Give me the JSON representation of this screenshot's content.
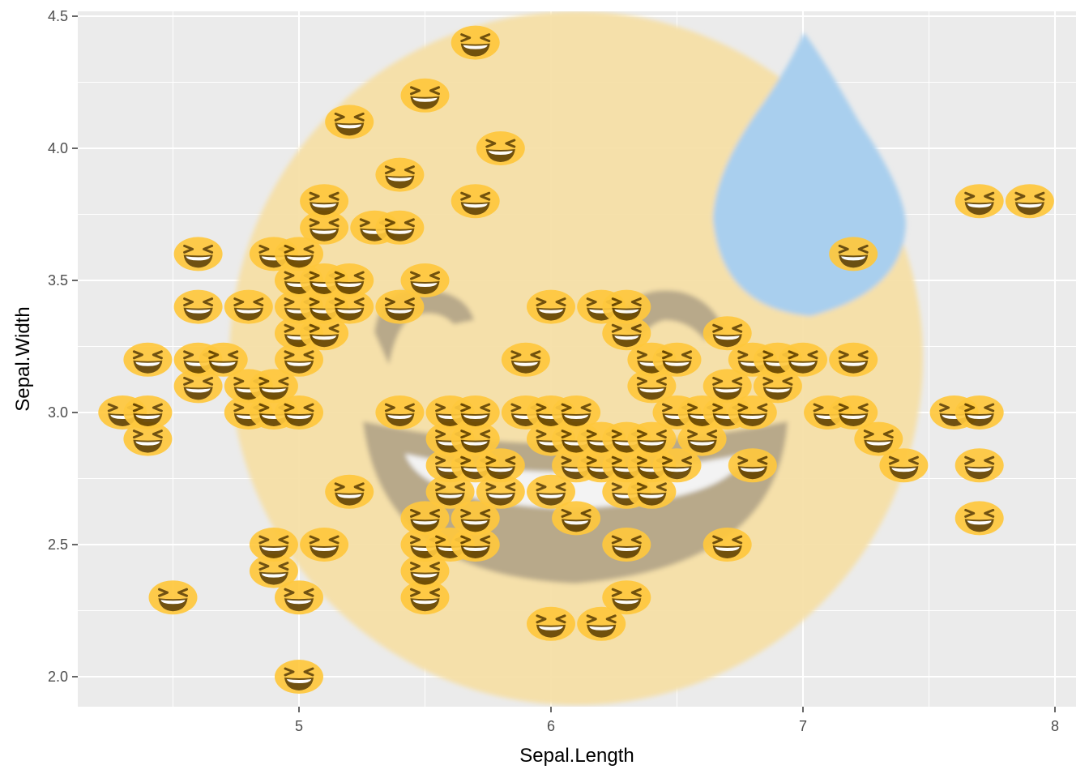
{
  "chart_data": {
    "type": "scatter",
    "xlabel": "Sepal.Length",
    "ylabel": "Sepal.Width",
    "xlim": [
      4.2,
      8.1
    ],
    "ylim": [
      1.88,
      4.6
    ],
    "x_ticks": [
      "5",
      "6",
      "7",
      "8"
    ],
    "y_ticks": [
      "2.0",
      "2.5",
      "3.0",
      "3.5",
      "4.0",
      "4.5"
    ],
    "x_tick_values": [
      5,
      6,
      7,
      8
    ],
    "y_tick_values": [
      2.0,
      2.5,
      3.0,
      3.5,
      4.0,
      4.5
    ],
    "grid": true,
    "marker_icon": "grinning-squinting-face-icon",
    "background_icon": "grinning-face-with-sweat-icon",
    "colors": {
      "panel": "#ebebeb",
      "grid": "#ffffff",
      "marker_face": "#ffc83d",
      "marker_features": "#664500",
      "background_face": "#f5dfa6",
      "background_features": "#b8a98a",
      "background_drop": "#a9cfee"
    },
    "points": [
      {
        "x": 4.3,
        "y": 3.0
      },
      {
        "x": 4.4,
        "y": 2.9
      },
      {
        "x": 4.4,
        "y": 3.0
      },
      {
        "x": 4.4,
        "y": 3.2
      },
      {
        "x": 4.5,
        "y": 2.3
      },
      {
        "x": 4.6,
        "y": 3.1
      },
      {
        "x": 4.6,
        "y": 3.2
      },
      {
        "x": 4.6,
        "y": 3.4
      },
      {
        "x": 4.6,
        "y": 3.6
      },
      {
        "x": 4.7,
        "y": 3.2
      },
      {
        "x": 4.8,
        "y": 3.0
      },
      {
        "x": 4.8,
        "y": 3.1
      },
      {
        "x": 4.8,
        "y": 3.4
      },
      {
        "x": 4.9,
        "y": 2.4
      },
      {
        "x": 4.9,
        "y": 2.5
      },
      {
        "x": 4.9,
        "y": 3.0
      },
      {
        "x": 4.9,
        "y": 3.1
      },
      {
        "x": 4.9,
        "y": 3.6
      },
      {
        "x": 5.0,
        "y": 2.0
      },
      {
        "x": 5.0,
        "y": 2.3
      },
      {
        "x": 5.0,
        "y": 3.0
      },
      {
        "x": 5.0,
        "y": 3.2
      },
      {
        "x": 5.0,
        "y": 3.3
      },
      {
        "x": 5.0,
        "y": 3.4
      },
      {
        "x": 5.0,
        "y": 3.5
      },
      {
        "x": 5.0,
        "y": 3.6
      },
      {
        "x": 5.1,
        "y": 2.5
      },
      {
        "x": 5.1,
        "y": 3.3
      },
      {
        "x": 5.1,
        "y": 3.4
      },
      {
        "x": 5.1,
        "y": 3.5
      },
      {
        "x": 5.1,
        "y": 3.7
      },
      {
        "x": 5.1,
        "y": 3.8
      },
      {
        "x": 5.2,
        "y": 2.7
      },
      {
        "x": 5.2,
        "y": 3.4
      },
      {
        "x": 5.2,
        "y": 3.5
      },
      {
        "x": 5.2,
        "y": 4.1
      },
      {
        "x": 5.3,
        "y": 3.7
      },
      {
        "x": 5.4,
        "y": 3.0
      },
      {
        "x": 5.4,
        "y": 3.4
      },
      {
        "x": 5.4,
        "y": 3.7
      },
      {
        "x": 5.4,
        "y": 3.9
      },
      {
        "x": 5.5,
        "y": 2.3
      },
      {
        "x": 5.5,
        "y": 2.4
      },
      {
        "x": 5.5,
        "y": 2.5
      },
      {
        "x": 5.5,
        "y": 2.6
      },
      {
        "x": 5.5,
        "y": 3.5
      },
      {
        "x": 5.5,
        "y": 4.2
      },
      {
        "x": 5.6,
        "y": 2.5
      },
      {
        "x": 5.6,
        "y": 2.7
      },
      {
        "x": 5.6,
        "y": 2.8
      },
      {
        "x": 5.6,
        "y": 2.9
      },
      {
        "x": 5.6,
        "y": 3.0
      },
      {
        "x": 5.7,
        "y": 2.5
      },
      {
        "x": 5.7,
        "y": 2.6
      },
      {
        "x": 5.7,
        "y": 2.8
      },
      {
        "x": 5.7,
        "y": 2.9
      },
      {
        "x": 5.7,
        "y": 3.0
      },
      {
        "x": 5.7,
        "y": 3.8
      },
      {
        "x": 5.7,
        "y": 4.4
      },
      {
        "x": 5.8,
        "y": 2.7
      },
      {
        "x": 5.8,
        "y": 2.8
      },
      {
        "x": 5.8,
        "y": 4.0
      },
      {
        "x": 5.9,
        "y": 3.0
      },
      {
        "x": 5.9,
        "y": 3.2
      },
      {
        "x": 6.0,
        "y": 2.2
      },
      {
        "x": 6.0,
        "y": 2.7
      },
      {
        "x": 6.0,
        "y": 2.9
      },
      {
        "x": 6.0,
        "y": 3.0
      },
      {
        "x": 6.0,
        "y": 3.4
      },
      {
        "x": 6.1,
        "y": 2.6
      },
      {
        "x": 6.1,
        "y": 2.8
      },
      {
        "x": 6.1,
        "y": 2.9
      },
      {
        "x": 6.1,
        "y": 3.0
      },
      {
        "x": 6.2,
        "y": 2.2
      },
      {
        "x": 6.2,
        "y": 2.8
      },
      {
        "x": 6.2,
        "y": 2.9
      },
      {
        "x": 6.2,
        "y": 3.4
      },
      {
        "x": 6.3,
        "y": 2.3
      },
      {
        "x": 6.3,
        "y": 2.5
      },
      {
        "x": 6.3,
        "y": 2.7
      },
      {
        "x": 6.3,
        "y": 2.8
      },
      {
        "x": 6.3,
        "y": 2.9
      },
      {
        "x": 6.3,
        "y": 3.3
      },
      {
        "x": 6.3,
        "y": 3.4
      },
      {
        "x": 6.4,
        "y": 2.7
      },
      {
        "x": 6.4,
        "y": 2.8
      },
      {
        "x": 6.4,
        "y": 2.9
      },
      {
        "x": 6.4,
        "y": 3.1
      },
      {
        "x": 6.4,
        "y": 3.2
      },
      {
        "x": 6.5,
        "y": 2.8
      },
      {
        "x": 6.5,
        "y": 3.0
      },
      {
        "x": 6.5,
        "y": 3.2
      },
      {
        "x": 6.6,
        "y": 2.9
      },
      {
        "x": 6.6,
        "y": 3.0
      },
      {
        "x": 6.7,
        "y": 2.5
      },
      {
        "x": 6.7,
        "y": 3.0
      },
      {
        "x": 6.7,
        "y": 3.1
      },
      {
        "x": 6.7,
        "y": 3.3
      },
      {
        "x": 6.8,
        "y": 2.8
      },
      {
        "x": 6.8,
        "y": 3.0
      },
      {
        "x": 6.8,
        "y": 3.2
      },
      {
        "x": 6.9,
        "y": 3.1
      },
      {
        "x": 6.9,
        "y": 3.2
      },
      {
        "x": 7.0,
        "y": 3.2
      },
      {
        "x": 7.1,
        "y": 3.0
      },
      {
        "x": 7.2,
        "y": 3.0
      },
      {
        "x": 7.2,
        "y": 3.2
      },
      {
        "x": 7.2,
        "y": 3.6
      },
      {
        "x": 7.3,
        "y": 2.9
      },
      {
        "x": 7.4,
        "y": 2.8
      },
      {
        "x": 7.6,
        "y": 3.0
      },
      {
        "x": 7.7,
        "y": 2.6
      },
      {
        "x": 7.7,
        "y": 2.8
      },
      {
        "x": 7.7,
        "y": 3.0
      },
      {
        "x": 7.7,
        "y": 3.8
      },
      {
        "x": 7.9,
        "y": 3.8
      }
    ]
  }
}
